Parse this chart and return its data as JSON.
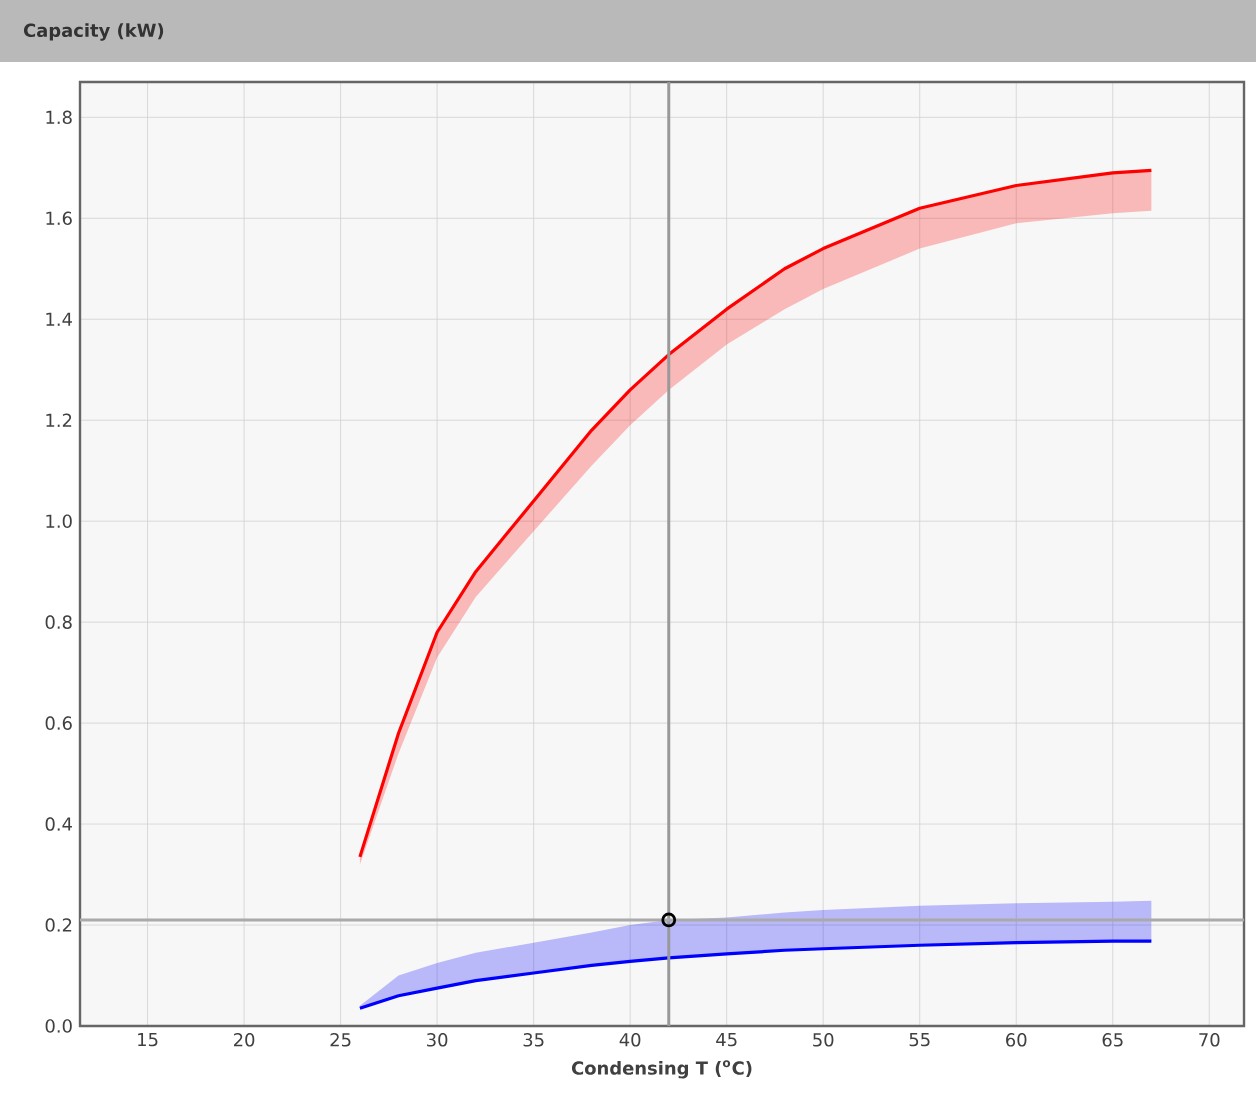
{
  "chart_data": {
    "type": "line",
    "title": "Capacity (kW)",
    "xlabel": "Condensing T ($^{o}$C)",
    "x": [
      26,
      28,
      30,
      32,
      35,
      38,
      40,
      42,
      45,
      48,
      50,
      55,
      60,
      65,
      67
    ],
    "series": [
      {
        "color": "#ff0000",
        "values": [
          0.335,
          0.58,
          0.78,
          0.9,
          1.04,
          1.18,
          1.26,
          1.33,
          1.42,
          1.5,
          1.54,
          1.62,
          1.665,
          1.69,
          1.695
        ],
        "lower": [
          0.32,
          0.54,
          0.73,
          0.85,
          0.98,
          1.11,
          1.19,
          1.26,
          1.35,
          1.42,
          1.46,
          1.54,
          1.59,
          1.61,
          1.615
        ],
        "upper": [
          0.335,
          0.58,
          0.78,
          0.9,
          1.04,
          1.18,
          1.26,
          1.33,
          1.42,
          1.5,
          1.54,
          1.62,
          1.665,
          1.69,
          1.695
        ]
      },
      {
        "color": "#0000ff",
        "values": [
          0.035,
          0.06,
          0.075,
          0.09,
          0.105,
          0.12,
          0.128,
          0.135,
          0.143,
          0.15,
          0.153,
          0.16,
          0.165,
          0.168,
          0.168
        ],
        "lower": [
          0.035,
          0.06,
          0.075,
          0.09,
          0.105,
          0.12,
          0.128,
          0.135,
          0.143,
          0.15,
          0.153,
          0.16,
          0.165,
          0.168,
          0.168
        ],
        "upper": [
          0.04,
          0.1,
          0.125,
          0.145,
          0.165,
          0.185,
          0.2,
          0.21,
          0.215,
          0.225,
          0.23,
          0.238,
          0.243,
          0.246,
          0.248
        ]
      },
      {
        "type": "scatter",
        "color": "#000000",
        "marker": "circle",
        "x": [
          42
        ],
        "values": [
          0.21
        ]
      }
    ],
    "xlim": [
      11.5,
      71.8
    ],
    "ylim": [
      0,
      1.87
    ],
    "xticks": [
      15,
      20,
      25,
      30,
      35,
      40,
      45,
      50,
      55,
      60,
      65,
      70
    ],
    "yticks": [
      {
        "value": 0,
        "label": "0.0"
      },
      {
        "value": 0.2,
        "label": "0.2"
      },
      {
        "value": 0.4,
        "label": "0.4"
      },
      {
        "value": 0.6,
        "label": "0.6"
      },
      {
        "value": 0.8,
        "label": "0.8"
      },
      {
        "value": 1.0,
        "label": "1.0"
      },
      {
        "value": 1.2,
        "label": "1.2"
      },
      {
        "value": 1.4,
        "label": "1.4"
      },
      {
        "value": 1.6,
        "label": "1.6"
      },
      {
        "value": 1.8,
        "label": "1.8"
      }
    ],
    "ref_lines": [
      {
        "axis": "x",
        "value": 42,
        "color": "#999999"
      },
      {
        "axis": "y",
        "value": 0.21,
        "color": "#aaaaaa"
      }
    ],
    "grid": true,
    "marker": "none",
    "line_style": "solid"
  }
}
